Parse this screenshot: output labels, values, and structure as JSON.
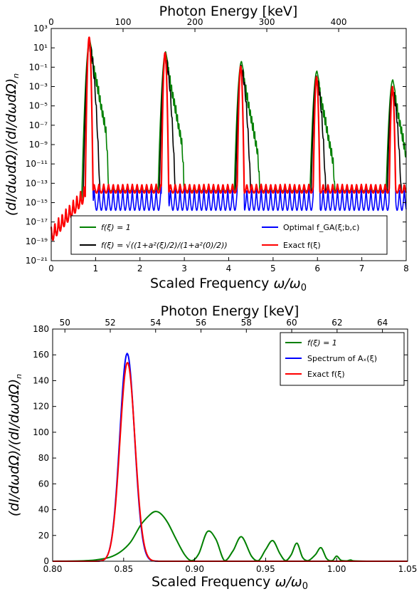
{
  "chart_data": [
    {
      "type": "line",
      "top_axis_label": "Photon Energy [keV]",
      "top_ticks": [
        "0",
        "100",
        "200",
        "300",
        "400"
      ],
      "top_tick_values": [
        0,
        100,
        200,
        300,
        400
      ],
      "top_xlim": [
        0,
        494
      ],
      "xlabel": "Scaled Frequency ω/ω₀",
      "ylabel": "(dI/dωdΩ)/(dI/dωdΩ)ₙ",
      "xlim": [
        0,
        8
      ],
      "yscale": "log",
      "ylim_exp": [
        -21,
        3
      ],
      "x_ticks": [
        0,
        1,
        2,
        3,
        4,
        5,
        6,
        7,
        8
      ],
      "x_tick_labels": [
        "0",
        "1",
        "2",
        "3",
        "4",
        "5",
        "6",
        "7",
        "8"
      ],
      "y_tick_exps": [
        3,
        1,
        -1,
        -3,
        -5,
        -7,
        -9,
        -11,
        -13,
        -15,
        -17,
        -19,
        -21
      ],
      "y_tick_labels": [
        "10³",
        "10¹",
        "10⁻¹",
        "10⁻³",
        "10⁻⁵",
        "10⁻⁷",
        "10⁻⁹",
        "10⁻¹¹",
        "10⁻¹³",
        "10⁻¹⁵",
        "10⁻¹⁷",
        "10⁻¹⁹",
        "10⁻²¹"
      ],
      "grid": false,
      "legend": {
        "placement": "bottom-center",
        "entries": [
          "f(ξ) = 1",
          "f(ξ) = √((1+a²(ξ)/2)/(1+a²(0)/2))",
          "Optimal f_GA(ξ;b,c)",
          "Exact f(ξ)"
        ]
      },
      "series": [
        {
          "name": "f(ξ) = 1",
          "color": "#008000",
          "peaks": [
            {
              "x": 0.87,
              "log_peak": 1.8
            },
            {
              "x": 2.58,
              "log_peak": 0.6
            },
            {
              "x": 4.29,
              "log_peak": -0.4
            },
            {
              "x": 5.99,
              "log_peak": -1.4
            },
            {
              "x": 7.7,
              "log_peak": -2.3
            }
          ],
          "log_floor": -13.3
        },
        {
          "name": "f(ξ) = √((1+a²(ξ)/2)/(1+a²(0)/2))",
          "color": "#000000",
          "peaks": [
            {
              "x": 0.86,
              "log_peak": 1.6
            },
            {
              "x": 2.57,
              "log_peak": 0.3
            },
            {
              "x": 4.28,
              "log_peak": -0.8
            },
            {
              "x": 5.98,
              "log_peak": -1.9
            },
            {
              "x": 7.69,
              "log_peak": -3.0
            }
          ],
          "log_floor": -13.4
        },
        {
          "name": "Optimal f_GA(ξ;b,c)",
          "color": "#0000ff",
          "peaks": [
            {
              "x": 0.855,
              "log_peak": 2.1
            },
            {
              "x": 2.565,
              "log_peak": 0.5
            },
            {
              "x": 4.27,
              "log_peak": -0.9
            },
            {
              "x": 5.98,
              "log_peak": -2.0
            },
            {
              "x": 7.69,
              "log_peak": -3.0
            }
          ],
          "log_floor": -15.5
        },
        {
          "name": "Exact f(ξ)",
          "color": "#ff0000",
          "peaks": [
            {
              "x": 0.855,
              "log_peak": 2.1
            },
            {
              "x": 2.565,
              "log_peak": 0.5
            },
            {
              "x": 4.27,
              "log_peak": -0.9
            },
            {
              "x": 5.98,
              "log_peak": -2.0
            },
            {
              "x": 7.69,
              "log_peak": -3.0
            }
          ],
          "log_floor": -13.1
        }
      ]
    },
    {
      "type": "line",
      "top_axis_label": "Photon Energy [keV]",
      "top_ticks": [
        "50",
        "52",
        "54",
        "56",
        "58",
        "60",
        "62",
        "64"
      ],
      "top_tick_values": [
        50,
        52,
        54,
        56,
        58,
        60,
        62,
        64
      ],
      "top_xlim": [
        49.46,
        65.11
      ],
      "xlabel": "Scaled Frequency ω/ω₀",
      "ylabel": "(dI/dωdΩ)/(dI/dωdΩ)ₙ",
      "xlim": [
        0.8,
        1.05
      ],
      "ylim": [
        0,
        180
      ],
      "x_ticks": [
        0.8,
        0.85,
        0.9,
        0.95,
        1.0,
        1.05
      ],
      "x_tick_labels": [
        "0.80",
        "0.85",
        "0.90",
        "0.95",
        "1.00",
        "1.05"
      ],
      "y_ticks": [
        0,
        20,
        40,
        60,
        80,
        100,
        120,
        140,
        160,
        180
      ],
      "grid": false,
      "legend": {
        "placement": "top-right",
        "entries": [
          "f(ξ) = 1",
          "Spectrum of Aₓ(ξ)",
          "Exact f(ξ)"
        ]
      },
      "series": [
        {
          "name": "f(ξ) = 1",
          "color": "#008000",
          "x": [
            0.8,
            0.82,
            0.83,
            0.84,
            0.848,
            0.855,
            0.862,
            0.868,
            0.872,
            0.876,
            0.881,
            0.887,
            0.893,
            0.898,
            0.903,
            0.909,
            0.915,
            0.921,
            0.927,
            0.933,
            0.94,
            0.945,
            0.95,
            0.955,
            0.96,
            0.964,
            0.968,
            0.972,
            0.976,
            0.98,
            0.985,
            0.989,
            0.993,
            0.997,
            1.0,
            1.003,
            1.007,
            1.01,
            1.013,
            1.03,
            1.05
          ],
          "y": [
            0,
            0.3,
            1,
            3,
            7.5,
            15,
            28,
            35.5,
            38.5,
            37,
            30,
            17,
            5,
            0.5,
            6,
            23,
            17,
            0.5,
            8,
            19,
            4,
            0.5,
            9,
            16,
            6,
            0.5,
            5,
            14,
            3,
            0.5,
            5,
            10.5,
            2,
            0.5,
            4,
            0.8,
            0.3,
            1.0,
            0.2,
            0,
            0
          ]
        },
        {
          "name": "Spectrum of Aₓ(ξ)",
          "color": "#0000ff",
          "peak_x": 0.8525,
          "peak_y": 161,
          "sigma": 0.0052
        },
        {
          "name": "Exact f(ξ)",
          "color": "#ff0000",
          "peak_x": 0.8527,
          "peak_y": 154,
          "sigma": 0.0053
        }
      ]
    }
  ]
}
